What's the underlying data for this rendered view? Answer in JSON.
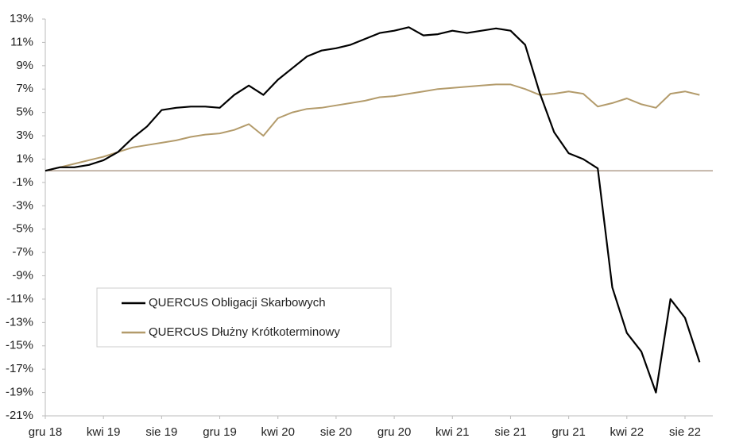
{
  "chart_data": {
    "type": "line",
    "x": [
      "gru 18",
      null,
      null,
      null,
      "kwi 19",
      null,
      null,
      null,
      "sie 19",
      null,
      null,
      null,
      "gru 19",
      null,
      null,
      null,
      "kwi 20",
      null,
      null,
      null,
      "sie 20",
      null,
      null,
      null,
      "gru 20",
      null,
      null,
      null,
      "kwi 21",
      null,
      null,
      null,
      "sie 21",
      null,
      null,
      null,
      "gru 21",
      null,
      null,
      null,
      "kwi 22",
      null,
      null,
      null,
      "sie 22",
      null
    ],
    "series": [
      {
        "name": "QUERCUS Obligacji Skarbowych",
        "color": "#000000",
        "values": [
          0,
          0.3,
          0.3,
          0.5,
          0.9,
          1.6,
          2.8,
          3.8,
          5.2,
          5.4,
          5.5,
          5.5,
          5.4,
          6.5,
          7.3,
          6.5,
          7.8,
          8.8,
          9.8,
          10.3,
          10.5,
          10.8,
          11.3,
          11.8,
          12.0,
          12.3,
          11.6,
          11.7,
          12.0,
          11.8,
          12.0,
          12.2,
          12.0,
          10.8,
          6.7,
          3.3,
          1.5,
          1.0,
          0.2,
          -10,
          -13.9,
          -15.5,
          -19,
          -11,
          -12.6,
          -16.4
        ]
      },
      {
        "name": "QUERCUS Dłużny Krótkoterminowy",
        "color": "#b39b6b",
        "values": [
          0,
          0.3,
          0.6,
          0.9,
          1.2,
          1.6,
          2.0,
          2.2,
          2.4,
          2.6,
          2.9,
          3.1,
          3.2,
          3.5,
          4.0,
          3.0,
          4.5,
          5.0,
          5.3,
          5.4,
          5.6,
          5.8,
          6.0,
          6.3,
          6.4,
          6.6,
          6.8,
          7.0,
          7.1,
          7.2,
          7.3,
          7.4,
          7.4,
          7.0,
          6.5,
          6.6,
          6.8,
          6.6,
          5.5,
          5.8,
          6.2,
          5.7,
          5.4,
          6.6,
          6.8,
          6.5
        ]
      }
    ],
    "ylim": [
      -21,
      13
    ],
    "yticks": [
      {
        "value": -21,
        "label": "-21%"
      },
      {
        "value": -19,
        "label": "-19%"
      },
      {
        "value": -17,
        "label": "-17%"
      },
      {
        "value": -15,
        "label": "-15%"
      },
      {
        "value": -13,
        "label": "-13%"
      },
      {
        "value": -11,
        "label": "-11%"
      },
      {
        "value": -9,
        "label": "-9%"
      },
      {
        "value": -7,
        "label": "-7%"
      },
      {
        "value": -5,
        "label": "-5%"
      },
      {
        "value": -3,
        "label": "-3%"
      },
      {
        "value": -1,
        "label": "-1%"
      },
      {
        "value": 1,
        "label": "1%"
      },
      {
        "value": 3,
        "label": "3%"
      },
      {
        "value": 5,
        "label": "5%"
      },
      {
        "value": 7,
        "label": "7%"
      },
      {
        "value": 9,
        "label": "9%"
      },
      {
        "value": 11,
        "label": "11%"
      },
      {
        "value": 13,
        "label": "13%"
      }
    ],
    "grid": false
  }
}
